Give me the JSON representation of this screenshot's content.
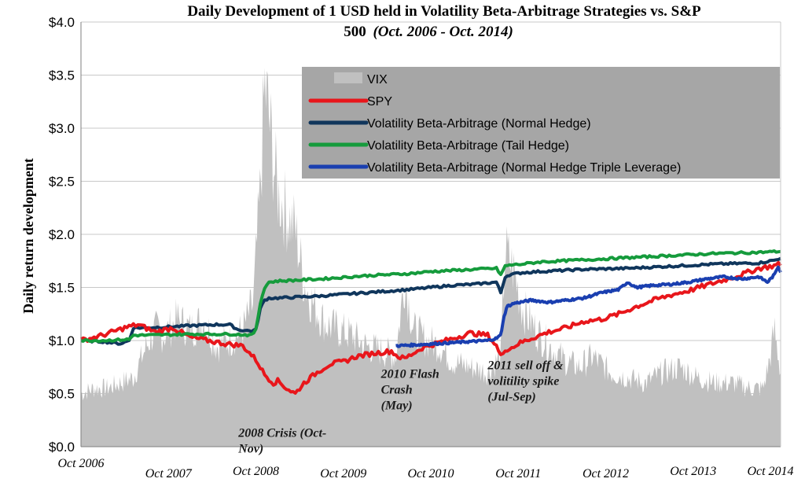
{
  "chart_data": {
    "type": "line",
    "title_line1": "Daily Development of 1 USD held in Volatility Beta-Arbitrage Strategies vs. S&P",
    "title_line2_bold": "500",
    "title_line2_italic": "(Oct. 2006 - Oct. 2014)",
    "ylabel": "Daily return development",
    "xlabel": "",
    "ylim": [
      0,
      4
    ],
    "yticks": [
      0,
      0.5,
      1,
      1.5,
      2,
      2.5,
      3,
      3.5,
      4
    ],
    "ytick_labels": [
      "$0.0",
      "$0.5",
      "$1.0",
      "$1.5",
      "$2.0",
      "$2.5",
      "$3.0",
      "$3.5",
      "$4.0"
    ],
    "xlim": [
      2006.75,
      2014.75
    ],
    "xticks": [
      2006.75,
      2007.75,
      2008.75,
      2009.75,
      2010.75,
      2011.75,
      2012.75,
      2013.75,
      2014.75
    ],
    "xtick_labels": [
      "Oct 2006",
      "Oct 2007",
      "Oct 2008",
      "Oct 2009",
      "Oct 2010",
      "Oct 2011",
      "Oct 2012",
      "Oct 2013",
      "Oct 2014"
    ],
    "grid": true,
    "legend_position": "top-right",
    "series": [
      {
        "name": "VIX",
        "kind": "area",
        "color": "#c0c0c0",
        "x": [
          2006.75,
          2006.9,
          2007.05,
          2007.2,
          2007.35,
          2007.5,
          2007.6,
          2007.7,
          2007.85,
          2008.0,
          2008.15,
          2008.3,
          2008.45,
          2008.6,
          2008.72,
          2008.8,
          2008.85,
          2008.9,
          2008.95,
          2009.0,
          2009.1,
          2009.2,
          2009.3,
          2009.4,
          2009.55,
          2009.7,
          2009.85,
          2010.0,
          2010.2,
          2010.35,
          2010.45,
          2010.55,
          2010.7,
          2010.85,
          2011.0,
          2011.2,
          2011.4,
          2011.55,
          2011.6,
          2011.7,
          2011.8,
          2011.95,
          2012.1,
          2012.3,
          2012.45,
          2012.6,
          2012.8,
          2013.0,
          2013.2,
          2013.4,
          2013.6,
          2013.8,
          2014.0,
          2014.2,
          2014.4,
          2014.55,
          2014.62,
          2014.68,
          2014.75
        ],
        "values": [
          0.5,
          0.55,
          0.55,
          0.6,
          0.65,
          0.95,
          1.1,
          1.05,
          1.2,
          1.1,
          1.2,
          0.95,
          1.0,
          1.1,
          1.35,
          2.4,
          3.4,
          3.1,
          2.7,
          2.4,
          2.2,
          2.05,
          1.55,
          1.35,
          1.15,
          1.1,
          1.05,
          0.95,
          0.9,
          0.85,
          1.6,
          1.1,
          1.0,
          0.95,
          0.8,
          0.75,
          0.7,
          0.85,
          1.85,
          1.65,
          1.3,
          1.1,
          0.95,
          0.8,
          0.75,
          0.85,
          0.7,
          0.65,
          0.6,
          0.7,
          0.75,
          0.65,
          0.6,
          0.6,
          0.55,
          0.55,
          0.8,
          1.1,
          0.7
        ]
      },
      {
        "name": "SPY",
        "kind": "line",
        "color": "#e8161b",
        "x": [
          2006.75,
          2007.0,
          2007.25,
          2007.4,
          2007.6,
          2007.8,
          2008.0,
          2008.2,
          2008.4,
          2008.6,
          2008.75,
          2008.85,
          2008.95,
          2009.0,
          2009.1,
          2009.2,
          2009.3,
          2009.45,
          2009.6,
          2009.75,
          2009.9,
          2010.1,
          2010.3,
          2010.37,
          2010.45,
          2010.55,
          2010.65,
          2010.8,
          2011.0,
          2011.2,
          2011.4,
          2011.5,
          2011.55,
          2011.6,
          2011.65,
          2011.75,
          2011.9,
          2012.1,
          2012.3,
          2012.5,
          2012.7,
          2012.9,
          2013.1,
          2013.3,
          2013.5,
          2013.7,
          2013.9,
          2014.1,
          2014.3,
          2014.5,
          2014.65,
          2014.75
        ],
        "values": [
          1.0,
          1.05,
          1.12,
          1.15,
          1.08,
          1.12,
          1.03,
          1.0,
          0.97,
          0.95,
          0.82,
          0.68,
          0.6,
          0.62,
          0.55,
          0.5,
          0.6,
          0.7,
          0.78,
          0.8,
          0.85,
          0.88,
          0.9,
          0.85,
          0.83,
          0.88,
          0.93,
          0.97,
          1.02,
          1.07,
          1.05,
          0.95,
          0.85,
          0.92,
          0.92,
          0.97,
          1.02,
          1.08,
          1.12,
          1.18,
          1.2,
          1.25,
          1.32,
          1.38,
          1.43,
          1.47,
          1.52,
          1.57,
          1.62,
          1.68,
          1.7,
          1.72
        ]
      },
      {
        "name": "Volatility Beta-Arbitrage (Normal Hedge)",
        "kind": "line",
        "color": "#10365c",
        "x": [
          2006.75,
          2007.0,
          2007.2,
          2007.3,
          2007.35,
          2007.5,
          2007.8,
          2008.0,
          2008.3,
          2008.45,
          2008.55,
          2008.7,
          2008.75,
          2008.8,
          2008.85,
          2008.9,
          2009.0,
          2009.5,
          2010.0,
          2010.5,
          2010.75,
          2011.0,
          2011.25,
          2011.5,
          2011.55,
          2011.6,
          2011.65,
          2011.8,
          2012.0,
          2012.5,
          2013.0,
          2013.5,
          2014.0,
          2014.5,
          2014.7,
          2014.75
        ],
        "values": [
          1.0,
          0.99,
          0.97,
          1.0,
          1.12,
          1.12,
          1.13,
          1.14,
          1.15,
          1.15,
          1.1,
          1.09,
          1.1,
          1.3,
          1.38,
          1.4,
          1.4,
          1.42,
          1.45,
          1.48,
          1.5,
          1.52,
          1.53,
          1.55,
          1.45,
          1.6,
          1.62,
          1.64,
          1.65,
          1.67,
          1.68,
          1.7,
          1.72,
          1.73,
          1.76,
          1.78
        ]
      },
      {
        "name": "Volatility Beta-Arbitrage (Tail Hedge)",
        "kind": "line",
        "color": "#159b3c",
        "x": [
          2006.75,
          2007.0,
          2007.3,
          2007.35,
          2007.5,
          2008.0,
          2008.5,
          2008.7,
          2008.75,
          2008.8,
          2008.85,
          2008.9,
          2009.0,
          2009.5,
          2010.0,
          2010.5,
          2010.75,
          2011.0,
          2011.25,
          2011.5,
          2011.55,
          2011.6,
          2011.65,
          2011.8,
          2012.0,
          2012.5,
          2013.0,
          2013.5,
          2014.0,
          2014.5,
          2014.75
        ],
        "values": [
          1.0,
          1.0,
          1.01,
          1.05,
          1.05,
          1.06,
          1.06,
          1.05,
          1.1,
          1.35,
          1.5,
          1.55,
          1.56,
          1.58,
          1.61,
          1.63,
          1.65,
          1.66,
          1.67,
          1.68,
          1.62,
          1.7,
          1.71,
          1.72,
          1.74,
          1.76,
          1.78,
          1.8,
          1.82,
          1.83,
          1.84
        ]
      },
      {
        "name": "Volatility Beta-Arbitrage (Normal Hedge Triple Leverage)",
        "kind": "line",
        "color": "#1a3fb0",
        "x": [
          2010.35,
          2010.6,
          2010.8,
          2011.0,
          2011.2,
          2011.4,
          2011.5,
          2011.55,
          2011.58,
          2011.62,
          2011.7,
          2011.9,
          2012.1,
          2012.3,
          2012.5,
          2012.7,
          2012.9,
          2013.0,
          2013.1,
          2013.3,
          2013.5,
          2013.7,
          2013.9,
          2014.1,
          2014.3,
          2014.5,
          2014.6,
          2014.68,
          2014.72,
          2014.75
        ],
        "values": [
          0.95,
          0.96,
          0.97,
          0.98,
          0.99,
          1.0,
          1.02,
          1.05,
          1.2,
          1.32,
          1.35,
          1.38,
          1.36,
          1.38,
          1.4,
          1.45,
          1.48,
          1.55,
          1.5,
          1.52,
          1.53,
          1.55,
          1.58,
          1.6,
          1.58,
          1.6,
          1.55,
          1.62,
          1.7,
          1.65
        ]
      }
    ],
    "annotations": [
      {
        "lines": [
          "2008 Crisis (Oct-",
          "Nov)"
        ],
        "x": 2008.55,
        "y": 0.3
      },
      {
        "lines": [
          "2010 Flash",
          "Crash",
          "(May)"
        ],
        "x": 2010.18,
        "y": 0.65
      },
      {
        "lines": [
          "2011 sell off &",
          "volitility spike",
          "(Jul-Sep)"
        ],
        "x": 2011.4,
        "y": 0.73
      }
    ]
  }
}
